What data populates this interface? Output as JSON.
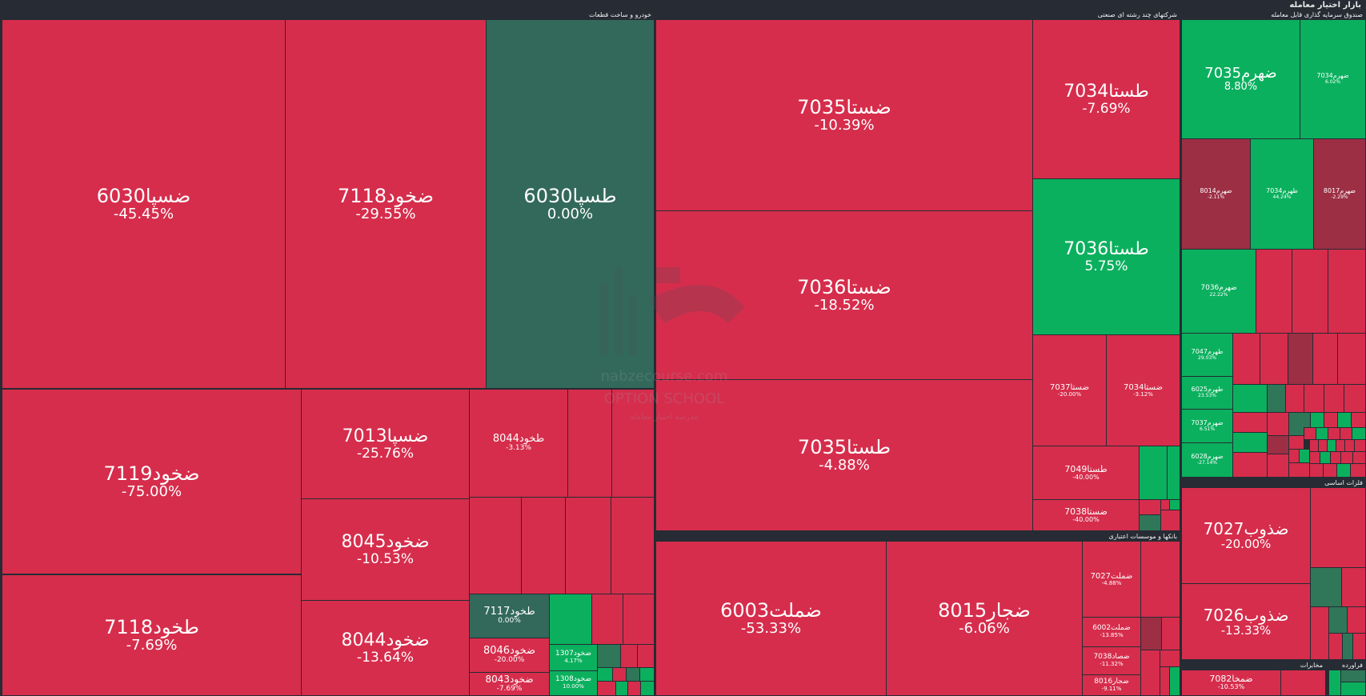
{
  "window": {
    "title": "بازار اختیار معامله"
  },
  "colors": {
    "down": "#d62d4c",
    "up": "#0bb05e",
    "flat": "#33695a",
    "background": "#262b34"
  },
  "sectors": [
    {
      "id": "auto",
      "title": "خودرو و ساخت قطعات",
      "tiles": [
        {
          "symbol": "ضسپا6030",
          "change": "-45.45%",
          "tone": "red"
        },
        {
          "symbol": "ضخود7118",
          "change": "-29.55%",
          "tone": "red"
        },
        {
          "symbol": "طسپا6030",
          "change": "0.00%",
          "tone": "neutral"
        },
        {
          "symbol": "ضخود7119",
          "change": "-75.00%",
          "tone": "red"
        },
        {
          "symbol": "ضسپا7013",
          "change": "-25.76%",
          "tone": "red"
        },
        {
          "symbol": "طخود8044",
          "change": "-3.13%",
          "tone": "red"
        },
        {
          "symbol": "ضخود8045",
          "change": "-10.53%",
          "tone": "red"
        },
        {
          "symbol": "طخود7118",
          "change": "-7.69%",
          "tone": "red"
        },
        {
          "symbol": "ضخود8044",
          "change": "-13.64%",
          "tone": "red"
        },
        {
          "symbol": "طخود7117",
          "change": "0.00%",
          "tone": "neutral"
        },
        {
          "symbol": "ضخود8046",
          "change": "-20.00%",
          "tone": "red"
        },
        {
          "symbol": "ضخود8043",
          "change": "-7.69%",
          "tone": "red"
        },
        {
          "symbol": "ضخود1307",
          "change": "4.17%",
          "tone": "green"
        },
        {
          "symbol": "ضخود1308",
          "change": "10.00%",
          "tone": "green"
        }
      ]
    },
    {
      "id": "diversified",
      "title": "شرکتهای چند رشته ای صنعتی",
      "tiles": [
        {
          "symbol": "ضستا7035",
          "change": "-10.39%",
          "tone": "red"
        },
        {
          "symbol": "طستا7034",
          "change": "-7.69%",
          "tone": "red"
        },
        {
          "symbol": "ضستا7036",
          "change": "-18.52%",
          "tone": "red"
        },
        {
          "symbol": "طستا7036",
          "change": "5.75%",
          "tone": "green"
        },
        {
          "symbol": "طستا7035",
          "change": "-4.88%",
          "tone": "red"
        },
        {
          "symbol": "ضستا7037",
          "change": "-20.00%",
          "tone": "red"
        },
        {
          "symbol": "ضستا7034",
          "change": "-3.12%",
          "tone": "red"
        },
        {
          "symbol": "طستا7049",
          "change": "-40.00%",
          "tone": "red"
        },
        {
          "symbol": "ضستا7038",
          "change": "-40.00%",
          "tone": "red"
        }
      ]
    },
    {
      "id": "banks",
      "title": "بانکها و موسسات اعتباری",
      "tiles": [
        {
          "symbol": "ضملت6003",
          "change": "-53.33%",
          "tone": "red"
        },
        {
          "symbol": "ضجار8015",
          "change": "-6.06%",
          "tone": "red"
        },
        {
          "symbol": "ضملت7027",
          "change": "-4.88%",
          "tone": "red"
        },
        {
          "symbol": "ضملت6002",
          "change": "-13.85%",
          "tone": "red"
        },
        {
          "symbol": "ضصاد7038",
          "change": "-11.32%",
          "tone": "red"
        },
        {
          "symbol": "ضجار8016",
          "change": "-9.11%",
          "tone": "red"
        }
      ]
    },
    {
      "id": "etf",
      "title": "صندوق سرمایه گذاری قابل معامله",
      "tiles": [
        {
          "symbol": "ضهرم7035",
          "change": "8.80%",
          "tone": "green"
        },
        {
          "symbol": "ضهرم7034",
          "change": "6.02%",
          "tone": "green"
        },
        {
          "symbol": "ضهرم8014",
          "change": "-2.11%",
          "tone": "maroon"
        },
        {
          "symbol": "طهرم7034",
          "change": "44.24%",
          "tone": "green"
        },
        {
          "symbol": "ضهرم8017",
          "change": "-2.29%",
          "tone": "maroon"
        },
        {
          "symbol": "ضهرم7036",
          "change": "22.22%",
          "tone": "green"
        },
        {
          "symbol": "طهرم7047",
          "change": "29.03%",
          "tone": "green"
        },
        {
          "symbol": "طهرم6025",
          "change": "23.53%",
          "tone": "green"
        },
        {
          "symbol": "ضهرم7037",
          "change": "6.51%",
          "tone": "green"
        },
        {
          "symbol": "ضهرم6028",
          "change": "-27.14%",
          "tone": "red"
        }
      ]
    },
    {
      "id": "metals",
      "title": "فلزات اساسی",
      "tiles": [
        {
          "symbol": "ضذوب7027",
          "change": "-20.00%",
          "tone": "red"
        },
        {
          "symbol": "ضذوب7026",
          "change": "-13.33%",
          "tone": "red"
        }
      ]
    },
    {
      "id": "telecom",
      "title": "مخابرات",
      "tiles": [
        {
          "symbol": "ضمخا7082",
          "change": "-10.53%",
          "tone": "red"
        }
      ]
    },
    {
      "id": "refinery",
      "title": "فراورده",
      "tiles": []
    }
  ],
  "watermark": {
    "site": "nabzecourse.com",
    "brand": "OPTION SCHOOL",
    "tagline": "مدرسه اختیار معامله"
  }
}
